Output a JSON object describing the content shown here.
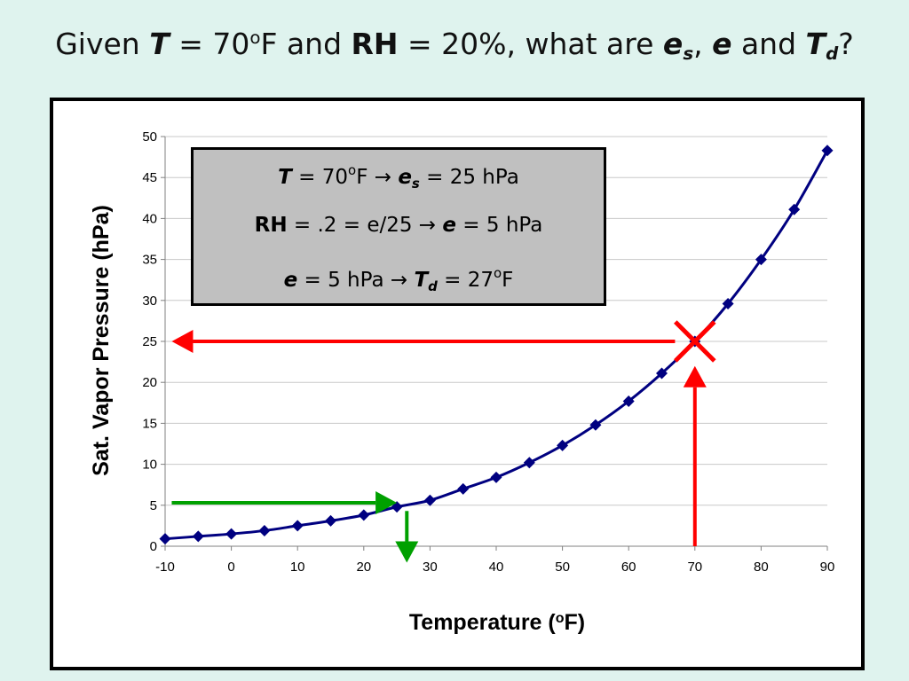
{
  "title": {
    "t1": "Given ",
    "t2": "T",
    "t3": " = 70",
    "t4": "o",
    "t5": "F and ",
    "t6": "RH",
    "t7": " = 20%, what are ",
    "t8": "e",
    "t9": "s",
    "t10": ", ",
    "t11": "e",
    "t12": " and ",
    "t13": "T",
    "t14": "d",
    "t15": "?"
  },
  "info_box": {
    "line1": {
      "a": "T",
      "b": " = 70",
      "c": "o",
      "d": "F → ",
      "e": "e",
      "f": "s",
      "g": " = 25 hPa"
    },
    "line2": {
      "a": "RH",
      "b": " = .2 = e/25 → ",
      "c": "e",
      "d": " = 5 hPa"
    },
    "line3": {
      "a": "e",
      "b": " = 5 hPa → ",
      "c": "T",
      "d": "d",
      "e": " = 27",
      "f": "o",
      "g": "F"
    }
  },
  "colors": {
    "curve": "#000080",
    "red_arrow": "#ff0000",
    "green_arrow": "#00a000",
    "background": "#dff3ee",
    "box": "#c0c0c0"
  },
  "chart_data": {
    "type": "line",
    "xlabel": "Temperature (oF)",
    "ylabel": "Sat. Vapor Pressure (hPa)",
    "xlim": [
      -10,
      90
    ],
    "ylim": [
      0,
      50
    ],
    "xticks": [
      -10,
      0,
      10,
      20,
      30,
      40,
      50,
      60,
      70,
      80,
      90
    ],
    "yticks": [
      0,
      5,
      10,
      15,
      20,
      25,
      30,
      35,
      40,
      45,
      50
    ],
    "grid": "horizontal",
    "legend": "none",
    "series": [
      {
        "marker": "diamond",
        "x": [
          -10,
          -5,
          0,
          5,
          10,
          15,
          20,
          25,
          30,
          35,
          40,
          45,
          50,
          55,
          60,
          65,
          70,
          75,
          80,
          85,
          90
        ],
        "y": [
          0.9,
          1.2,
          1.5,
          1.9,
          2.5,
          3.1,
          3.8,
          4.8,
          5.6,
          7.0,
          8.4,
          10.2,
          12.3,
          14.8,
          17.7,
          21.1,
          25.0,
          29.6,
          35.0,
          41.1,
          48.3
        ]
      }
    ],
    "annotations": {
      "red_arrow_up": {
        "from": [
          70,
          0
        ],
        "to": [
          70,
          22
        ]
      },
      "red_x_marker": [
        70,
        25
      ],
      "red_arrow_left": {
        "from": [
          67,
          25
        ],
        "to": [
          -9,
          25
        ]
      },
      "green_arrow_right": {
        "from": [
          -9,
          5.3
        ],
        "to": [
          25,
          5.3
        ]
      },
      "green_arrow_down": {
        "from": [
          26.5,
          4.3
        ],
        "to": [
          26.5,
          -2
        ]
      }
    }
  }
}
